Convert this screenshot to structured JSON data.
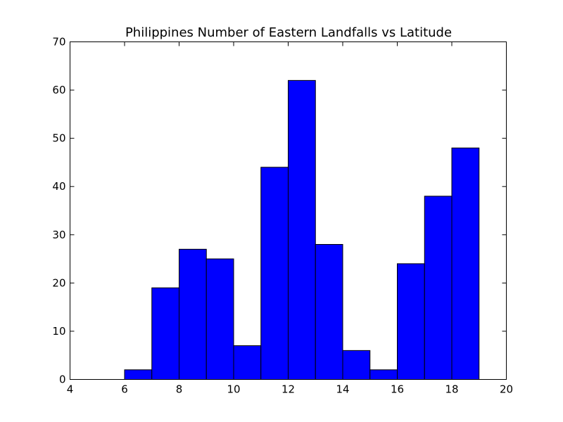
{
  "chart_data": {
    "type": "bar",
    "title": "Philippines Number of Eastern Landfalls vs Latitude",
    "xlabel": "",
    "ylabel": "",
    "xlim": [
      4,
      20
    ],
    "ylim": [
      0,
      70
    ],
    "xticks": [
      4,
      6,
      8,
      10,
      12,
      14,
      16,
      18,
      20
    ],
    "yticks": [
      0,
      10,
      20,
      30,
      40,
      50,
      60,
      70
    ],
    "bin_width": 1,
    "bins": [
      4,
      5,
      6,
      7,
      8,
      9,
      10,
      11,
      12,
      13,
      14,
      15,
      16,
      17,
      18
    ],
    "values": [
      0,
      0,
      2,
      19,
      27,
      25,
      7,
      44,
      62,
      28,
      6,
      2,
      24,
      38,
      48
    ],
    "bar_color": "#0000ff",
    "edge_color": "#000000",
    "grid": false,
    "legend": "none"
  }
}
